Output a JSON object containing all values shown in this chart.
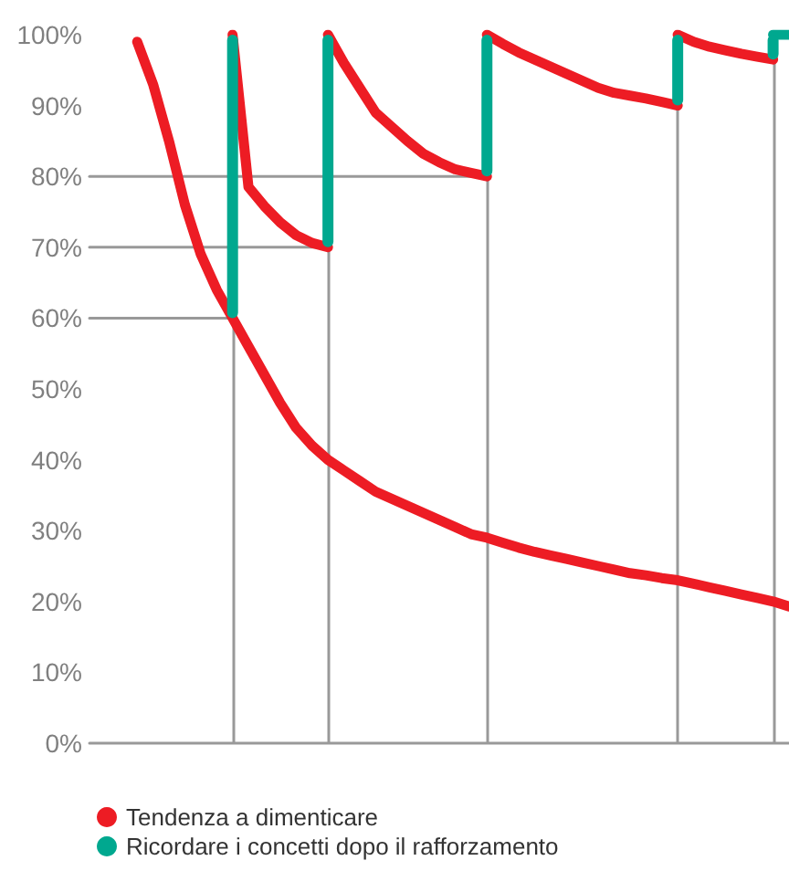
{
  "chart_data": {
    "type": "line",
    "ylim": [
      0,
      100
    ],
    "tick_labels": "y",
    "grid": false,
    "legend": "bottom left",
    "line_style": "solid",
    "categories": [
      null,
      null,
      null,
      null,
      null,
      null,
      null,
      null,
      null,
      null,
      null,
      null,
      null,
      null,
      null,
      null,
      null,
      null,
      null,
      null,
      null,
      null,
      null,
      null,
      null,
      null,
      null,
      null,
      null,
      null,
      null,
      null,
      null,
      null,
      null,
      null,
      null,
      null,
      null,
      null,
      null,
      null,
      null,
      null,
      null
    ],
    "yticks": [
      {
        "value": 0,
        "label": "0%"
      },
      {
        "value": 10,
        "label": "10%"
      },
      {
        "value": 20,
        "label": "20%"
      },
      {
        "value": 30,
        "label": "30%"
      },
      {
        "value": 40,
        "label": "40%"
      },
      {
        "value": 50,
        "label": "50%"
      },
      {
        "value": 60,
        "label": "60%"
      },
      {
        "value": 70,
        "label": "70%"
      },
      {
        "value": 80,
        "label": "80%"
      },
      {
        "value": 90,
        "label": "90%"
      },
      {
        "value": 100,
        "label": "100%"
      }
    ],
    "series": [
      {
        "color": "#999999",
        "values": [
          60,
          60,
          60,
          60,
          60,
          60,
          60,
          60,
          60,
          60,
          null,
          null,
          null,
          null,
          null,
          null,
          null,
          null,
          null,
          null,
          null,
          null,
          null,
          null,
          null,
          null,
          null,
          null,
          null,
          null,
          null,
          null,
          null,
          null,
          null,
          null,
          null,
          null,
          null,
          null,
          null,
          null,
          null,
          null,
          null
        ]
      },
      {
        "color": "#999999",
        "values": [
          70,
          70,
          70,
          70,
          70,
          70,
          70,
          70,
          70,
          70,
          70,
          70,
          70,
          70,
          70,
          70,
          null,
          null,
          null,
          null,
          null,
          null,
          null,
          null,
          null,
          null,
          null,
          null,
          null,
          null,
          null,
          null,
          null,
          null,
          null,
          null,
          null,
          null,
          null,
          null,
          null,
          null,
          null,
          null,
          null
        ]
      },
      {
        "color": "#999999",
        "values": [
          80,
          80,
          80,
          80,
          80,
          80,
          80,
          80,
          80,
          80,
          80,
          80,
          80,
          80,
          80,
          80,
          80,
          80,
          80,
          80,
          80,
          80,
          80,
          80,
          80,
          80,
          null,
          null,
          null,
          null,
          null,
          null,
          null,
          null,
          null,
          null,
          null,
          null,
          null,
          null,
          null,
          null,
          null,
          null,
          null
        ]
      },
      {
        "name": "Tendenza a dimenticare",
        "color": "#ed1c24",
        "values": [
          null,
          null,
          null,
          99,
          93,
          85,
          76,
          69,
          64,
          60,
          56,
          52,
          48,
          44.5,
          42,
          40,
          38.5,
          37,
          35.5,
          34.5,
          33.5,
          32.5,
          31.5,
          30.5,
          29.5,
          29,
          28.3,
          27.6,
          27,
          26.5,
          26,
          25.5,
          25,
          24.5,
          24,
          23.7,
          23.3,
          23,
          22.5,
          22,
          21.5,
          21,
          20.5,
          20,
          19.3
        ]
      },
      {
        "color": "#ed1c24",
        "values": [
          null,
          null,
          null,
          null,
          null,
          null,
          null,
          null,
          null,
          100,
          78.5,
          75.8,
          73.5,
          71.7,
          70.6,
          70,
          null,
          null,
          null,
          null,
          null,
          null,
          null,
          null,
          null,
          null,
          null,
          null,
          null,
          null,
          null,
          null,
          null,
          null,
          null,
          null,
          null,
          null,
          null,
          null,
          null,
          null,
          null,
          null,
          null
        ]
      },
      {
        "color": "#ed1c24",
        "values": [
          null,
          null,
          null,
          null,
          null,
          null,
          null,
          null,
          null,
          null,
          null,
          null,
          null,
          null,
          null,
          100,
          96,
          92.5,
          89,
          87,
          85,
          83.2,
          82,
          81,
          80.5,
          80,
          null,
          null,
          null,
          null,
          null,
          null,
          null,
          null,
          null,
          null,
          null,
          null,
          null,
          null,
          null,
          null,
          null,
          null,
          null
        ]
      },
      {
        "color": "#ed1c24",
        "values": [
          null,
          null,
          null,
          null,
          null,
          null,
          null,
          null,
          null,
          null,
          null,
          null,
          null,
          null,
          null,
          null,
          null,
          null,
          null,
          null,
          null,
          null,
          null,
          null,
          null,
          100,
          98.7,
          97.5,
          96.5,
          95.5,
          94.5,
          93.5,
          92.5,
          91.8,
          91.4,
          91,
          90.5,
          90,
          null,
          null,
          null,
          null,
          null,
          null,
          null
        ]
      },
      {
        "color": "#ed1c24",
        "values": [
          null,
          null,
          null,
          null,
          null,
          null,
          null,
          null,
          null,
          null,
          null,
          null,
          null,
          null,
          null,
          null,
          null,
          null,
          null,
          null,
          null,
          null,
          null,
          null,
          null,
          null,
          null,
          null,
          null,
          null,
          null,
          null,
          null,
          null,
          null,
          null,
          null,
          100,
          99,
          98.3,
          97.8,
          97.3,
          96.9,
          96.5,
          null
        ]
      },
      {
        "name": "Ricordare i concetti dopo il rafforzamento",
        "type": "bar",
        "color": "#00a88f",
        "values": [
          null,
          null,
          null,
          null,
          null,
          null,
          null,
          null,
          null,
          40,
          null,
          null,
          null,
          null,
          null,
          30,
          null,
          null,
          null,
          null,
          null,
          null,
          null,
          null,
          null,
          20,
          null,
          null,
          null,
          null,
          null,
          null,
          null,
          null,
          null,
          null,
          null,
          10,
          null,
          null,
          null,
          null,
          null,
          3.5,
          null
        ],
        "base": [
          null,
          null,
          null,
          null,
          null,
          null,
          null,
          null,
          null,
          60,
          null,
          null,
          null,
          null,
          null,
          70,
          null,
          null,
          null,
          null,
          null,
          null,
          null,
          null,
          null,
          80,
          null,
          null,
          null,
          null,
          null,
          null,
          null,
          null,
          null,
          null,
          null,
          90,
          null,
          null,
          null,
          null,
          null,
          96.5,
          null
        ]
      },
      {
        "color": "#00a88f",
        "values": [
          null,
          null,
          null,
          null,
          null,
          null,
          null,
          null,
          null,
          null,
          null,
          null,
          null,
          null,
          null,
          null,
          null,
          null,
          null,
          null,
          null,
          null,
          null,
          null,
          null,
          null,
          null,
          null,
          null,
          null,
          null,
          null,
          null,
          null,
          null,
          null,
          null,
          null,
          null,
          null,
          null,
          null,
          null,
          100,
          100
        ]
      }
    ]
  }
}
